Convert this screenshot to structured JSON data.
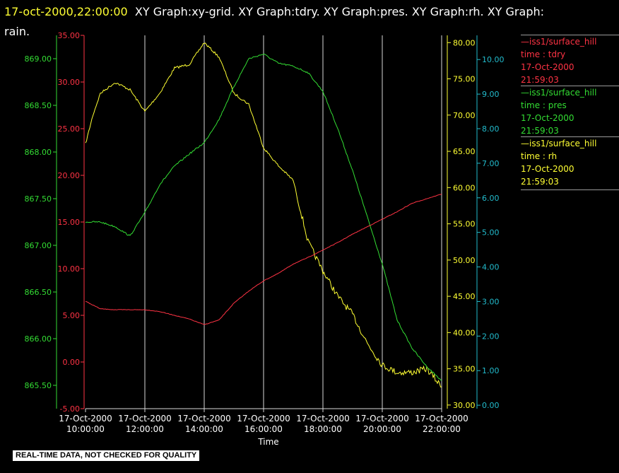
{
  "header": {
    "timestamp": "17-oct-2000,22:00:00",
    "titles": "XY Graph:xy-grid.  XY Graph:tdry.  XY Graph:pres.  XY Graph:rh.  XY Graph:",
    "titles_cont": "rain."
  },
  "legend": [
    {
      "name": "—iss1/surface_hill",
      "var": "time : tdry",
      "date": "17-Oct-2000",
      "time": "21:59:03",
      "color": "#ff3344"
    },
    {
      "name": "—iss1/surface_hill",
      "var": "time : pres",
      "date": "17-Oct-2000",
      "time": "21:59:03",
      "color": "#33dd33"
    },
    {
      "name": "—iss1/surface_hill",
      "var": "time : rh",
      "date": "17-Oct-2000",
      "time": "21:59:03",
      "color": "#ffff33"
    }
  ],
  "footer": "REAL-TIME DATA, NOT CHECKED FOR QUALITY",
  "chart_data": {
    "type": "line",
    "xlabel": "Time",
    "x_ticks": [
      {
        "date": "17-Oct-2000",
        "time": "10:00:00"
      },
      {
        "date": "17-Oct-2000",
        "time": "12:00:00"
      },
      {
        "date": "17-Oct-2000",
        "time": "14:00:00"
      },
      {
        "date": "17-Oct-2000",
        "time": "16:00:00"
      },
      {
        "date": "17-Oct-2000",
        "time": "18:00:00"
      },
      {
        "date": "17-Oct-2000",
        "time": "20:00:00"
      },
      {
        "date": "17-Oct-2000",
        "time": "22:00:00"
      }
    ],
    "xlim": [
      "17-Oct-2000 10:00",
      "17-Oct-2000 22:00"
    ],
    "grid": "vertical lines at each time tick",
    "axes": {
      "tdry": {
        "color": "#ff3344",
        "ylim": [
          -5,
          35
        ],
        "ticks": [
          "-5.00",
          "0.00",
          "5.00",
          "10.00",
          "15.00",
          "20.00",
          "25.00",
          "30.00",
          "35.00"
        ]
      },
      "pres": {
        "color": "#33dd33",
        "ylim": [
          865.25,
          869.25
        ],
        "ticks": [
          "865.50",
          "866.00",
          "866.50",
          "867.00",
          "867.50",
          "868.00",
          "868.50",
          "869.00"
        ]
      },
      "rh": {
        "color": "#ffff33",
        "ylim": [
          29.5,
          81
        ],
        "ticks": [
          "30.00",
          "35.00",
          "40.00",
          "45.00",
          "50.00",
          "55.00",
          "60.00",
          "65.00",
          "70.00",
          "75.00",
          "80.00"
        ]
      },
      "rain": {
        "color": "#22bbcc",
        "ylim": [
          -0.1,
          10.7
        ],
        "ticks": [
          "0.00",
          "1.00",
          "2.00",
          "3.00",
          "4.00",
          "5.00",
          "6.00",
          "7.00",
          "8.00",
          "9.00",
          "10.00"
        ]
      }
    },
    "series": [
      {
        "name": "tdry",
        "axis": "tdry",
        "x": [
          "17-Oct-2000 10:00",
          "17-Oct-2000 10:30",
          "17-Oct-2000 11:00",
          "17-Oct-2000 11:30",
          "17-Oct-2000 12:00",
          "17-Oct-2000 12:30",
          "17-Oct-2000 13:00",
          "17-Oct-2000 13:30",
          "17-Oct-2000 14:00",
          "17-Oct-2000 14:30",
          "17-Oct-2000 15:00",
          "17-Oct-2000 15:30",
          "17-Oct-2000 16:00",
          "17-Oct-2000 16:30",
          "17-Oct-2000 17:00",
          "17-Oct-2000 17:30",
          "17-Oct-2000 18:00",
          "17-Oct-2000 18:30",
          "17-Oct-2000 19:00",
          "17-Oct-2000 19:30",
          "17-Oct-2000 20:00",
          "17-Oct-2000 20:30",
          "17-Oct-2000 21:00",
          "17-Oct-2000 21:30",
          "17-Oct-2000 22:00"
        ],
        "y": [
          6.5,
          5.7,
          5.6,
          5.6,
          5.6,
          5.4,
          5.0,
          4.6,
          4.0,
          4.5,
          6.3,
          7.6,
          8.7,
          9.5,
          10.5,
          11.2,
          12.0,
          12.8,
          13.7,
          14.5,
          15.3,
          16.1,
          17.0,
          17.5,
          18.0
        ]
      },
      {
        "name": "pres",
        "axis": "pres",
        "x": [
          "17-Oct-2000 10:00",
          "17-Oct-2000 10:30",
          "17-Oct-2000 11:00",
          "17-Oct-2000 11:30",
          "17-Oct-2000 12:00",
          "17-Oct-2000 12:30",
          "17-Oct-2000 13:00",
          "17-Oct-2000 13:30",
          "17-Oct-2000 14:00",
          "17-Oct-2000 14:30",
          "17-Oct-2000 15:00",
          "17-Oct-2000 15:30",
          "17-Oct-2000 16:00",
          "17-Oct-2000 16:30",
          "17-Oct-2000 17:00",
          "17-Oct-2000 17:30",
          "17-Oct-2000 18:00",
          "17-Oct-2000 18:30",
          "17-Oct-2000 19:00",
          "17-Oct-2000 19:30",
          "17-Oct-2000 20:00",
          "17-Oct-2000 20:30",
          "17-Oct-2000 21:00",
          "17-Oct-2000 21:30",
          "17-Oct-2000 22:00"
        ],
        "y": [
          867.25,
          867.25,
          867.2,
          867.1,
          867.35,
          867.65,
          867.85,
          867.98,
          868.1,
          868.35,
          868.7,
          869.0,
          869.05,
          868.95,
          868.92,
          868.85,
          868.65,
          868.25,
          867.8,
          867.3,
          866.8,
          866.2,
          865.9,
          865.7,
          865.55
        ]
      },
      {
        "name": "rh",
        "axis": "rh",
        "x": [
          "17-Oct-2000 10:00",
          "17-Oct-2000 10:15",
          "17-Oct-2000 10:30",
          "17-Oct-2000 11:00",
          "17-Oct-2000 11:30",
          "17-Oct-2000 12:00",
          "17-Oct-2000 12:30",
          "17-Oct-2000 13:00",
          "17-Oct-2000 13:30",
          "17-Oct-2000 14:00",
          "17-Oct-2000 14:30",
          "17-Oct-2000 15:00",
          "17-Oct-2000 15:30",
          "17-Oct-2000 16:00",
          "17-Oct-2000 16:30",
          "17-Oct-2000 17:00",
          "17-Oct-2000 17:30",
          "17-Oct-2000 18:00",
          "17-Oct-2000 18:30",
          "17-Oct-2000 19:00",
          "17-Oct-2000 19:30",
          "17-Oct-2000 20:00",
          "17-Oct-2000 20:30",
          "17-Oct-2000 21:00",
          "17-Oct-2000 21:30",
          "17-Oct-2000 22:00"
        ],
        "y": [
          66.0,
          70.0,
          73.0,
          74.5,
          73.5,
          70.5,
          73.0,
          76.5,
          77.0,
          80.0,
          78.0,
          73.0,
          71.5,
          65.5,
          63.0,
          61.0,
          52.5,
          48.5,
          45.0,
          42.5,
          38.5,
          35.5,
          34.5,
          34.5,
          35.0,
          32.5
        ]
      }
    ]
  }
}
